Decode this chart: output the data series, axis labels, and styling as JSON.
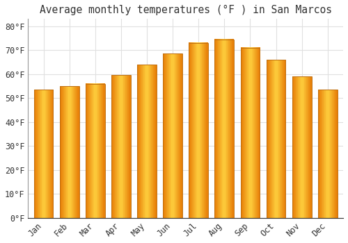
{
  "title": "Average monthly temperatures (°F ) in San Marcos",
  "months": [
    "Jan",
    "Feb",
    "Mar",
    "Apr",
    "May",
    "Jun",
    "Jul",
    "Aug",
    "Sep",
    "Oct",
    "Nov",
    "Dec"
  ],
  "values": [
    53.5,
    55.0,
    56.0,
    59.5,
    64.0,
    68.5,
    73.0,
    74.5,
    71.0,
    66.0,
    59.0,
    53.5
  ],
  "bar_color_left": "#E8820A",
  "bar_color_center": "#FFD040",
  "bar_color_right": "#E8820A",
  "background_color": "#ffffff",
  "grid_color": "#e0e0e0",
  "text_color": "#333333",
  "ylim": [
    0,
    83
  ],
  "yticks": [
    0,
    10,
    20,
    30,
    40,
    50,
    60,
    70,
    80
  ],
  "title_fontsize": 10.5,
  "tick_fontsize": 8.5,
  "bar_width": 0.75
}
